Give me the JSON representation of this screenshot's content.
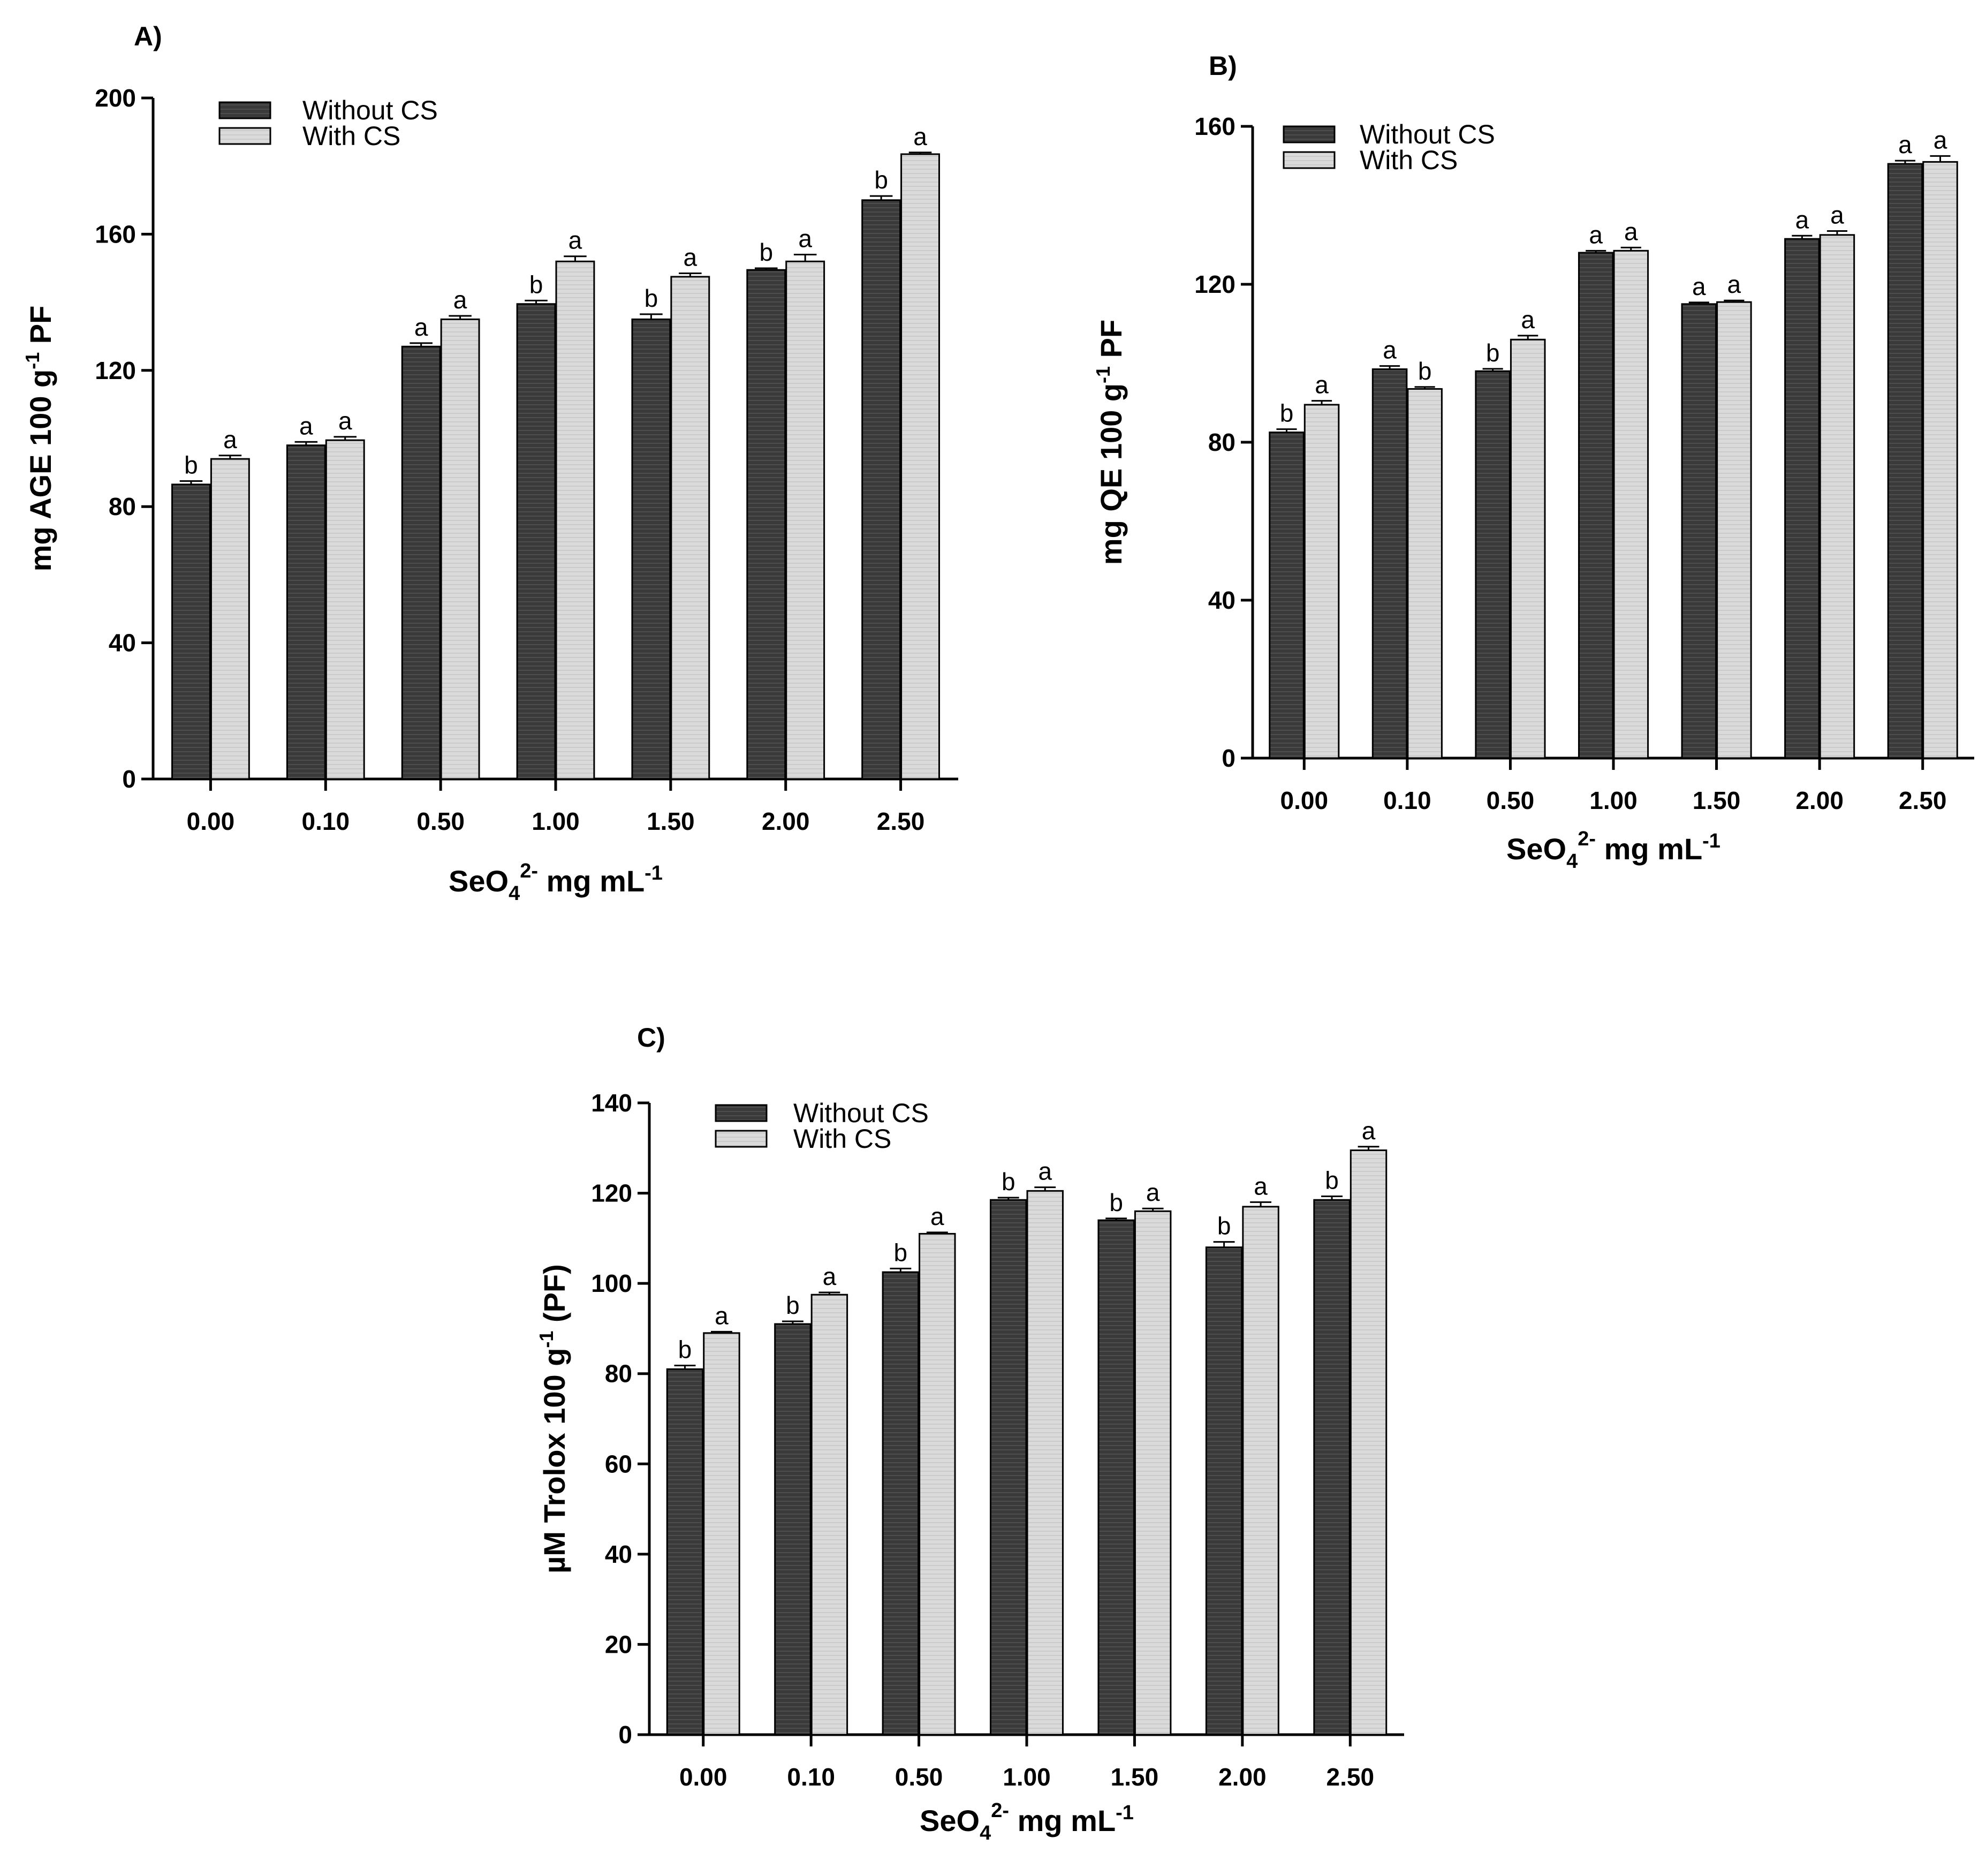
{
  "colors": {
    "without_cs": "#3a3a3a",
    "with_cs": "#d9d9d9",
    "axis": "#000000"
  },
  "chart_data": [
    {
      "panel": "A)",
      "type": "bar",
      "categories": [
        "0.00",
        "0.10",
        "0.50",
        "1.00",
        "1.50",
        "2.00",
        "2.50"
      ],
      "series": [
        {
          "name": "Without CS",
          "values": [
            86.5,
            98,
            127,
            139.5,
            135,
            149.5,
            170
          ],
          "errors": [
            1,
            1,
            1,
            1,
            1.5,
            0.5,
            1.2
          ],
          "labels": [
            "b",
            "a",
            "a",
            "b",
            "b",
            "b",
            "b"
          ]
        },
        {
          "name": "With CS",
          "values": [
            94,
            99.5,
            135,
            152,
            147.5,
            152,
            183.5
          ],
          "errors": [
            1,
            1,
            1,
            1.5,
            1,
            2,
            0.5
          ],
          "labels": [
            "a",
            "a",
            "a",
            "a",
            "a",
            "a",
            "a"
          ]
        }
      ],
      "ylim": [
        0,
        200
      ],
      "yticks": [
        "0",
        "40",
        "80",
        "120",
        "160",
        "200"
      ],
      "ylabel": {
        "main": "mg AGE 100 g",
        "sup": "-1",
        "tail": " PF"
      },
      "xlabel": {
        "main": "SeO",
        "sub": "4",
        "sup": "2-",
        "tail": " mg mL",
        "tail_sup": "-1"
      },
      "legend": "top-left",
      "grid": false
    },
    {
      "panel": "B)",
      "type": "bar",
      "categories": [
        "0.00",
        "0.10",
        "0.50",
        "1.00",
        "1.50",
        "2.00",
        "2.50"
      ],
      "series": [
        {
          "name": "Without CS",
          "values": [
            82.5,
            98.5,
            98,
            128,
            115,
            131.5,
            150.5
          ],
          "errors": [
            0.8,
            0.8,
            0.6,
            0.5,
            0.4,
            0.8,
            0.8
          ],
          "labels": [
            "b",
            "a",
            "b",
            "a",
            "a",
            "a",
            "a"
          ]
        },
        {
          "name": "With CS",
          "values": [
            89.5,
            93.5,
            106,
            128.5,
            115.5,
            132.5,
            151
          ],
          "errors": [
            1,
            0.5,
            1,
            0.8,
            0.4,
            1,
            1.5
          ],
          "labels": [
            "a",
            "b",
            "a",
            "a",
            "a",
            "a",
            "a"
          ]
        }
      ],
      "ylim": [
        0,
        160
      ],
      "yticks": [
        "0",
        "40",
        "80",
        "120",
        "160"
      ],
      "ylabel": {
        "main": "mg QE 100 g",
        "sup": "-1",
        "tail": " PF"
      },
      "xlabel": {
        "main": "SeO",
        "sub": "4",
        "sup": "2-",
        "tail": " mg mL",
        "tail_sup": "-1"
      },
      "legend": "top-left",
      "grid": false
    },
    {
      "panel": "C)",
      "type": "bar",
      "categories": [
        "0.00",
        "0.10",
        "0.50",
        "1.00",
        "1.50",
        "2.00",
        "2.50"
      ],
      "series": [
        {
          "name": "Without CS",
          "values": [
            81,
            91,
            102.5,
            118.5,
            114,
            108,
            118.5
          ],
          "errors": [
            0.8,
            0.6,
            0.8,
            0.5,
            0.4,
            1.2,
            0.8
          ],
          "labels": [
            "b",
            "b",
            "b",
            "b",
            "b",
            "b",
            "b"
          ]
        },
        {
          "name": "With CS",
          "values": [
            89,
            97.5,
            111,
            120.5,
            116,
            117,
            129.5
          ],
          "errors": [
            0.3,
            0.5,
            0.3,
            0.8,
            0.6,
            1,
            0.8
          ],
          "labels": [
            "a",
            "a",
            "a",
            "a",
            "a",
            "a",
            "a"
          ]
        }
      ],
      "ylim": [
        0,
        140
      ],
      "yticks": [
        "0",
        "20",
        "40",
        "60",
        "80",
        "100",
        "120",
        "140"
      ],
      "ylabel": {
        "main": "µM Trolox 100 g",
        "sup": "-1",
        "tail": " (PF)"
      },
      "xlabel": {
        "main": "SeO",
        "sub": "4",
        "sup": "2-",
        "tail": " mg mL",
        "tail_sup": "-1"
      },
      "legend": "top-left",
      "grid": false
    }
  ]
}
